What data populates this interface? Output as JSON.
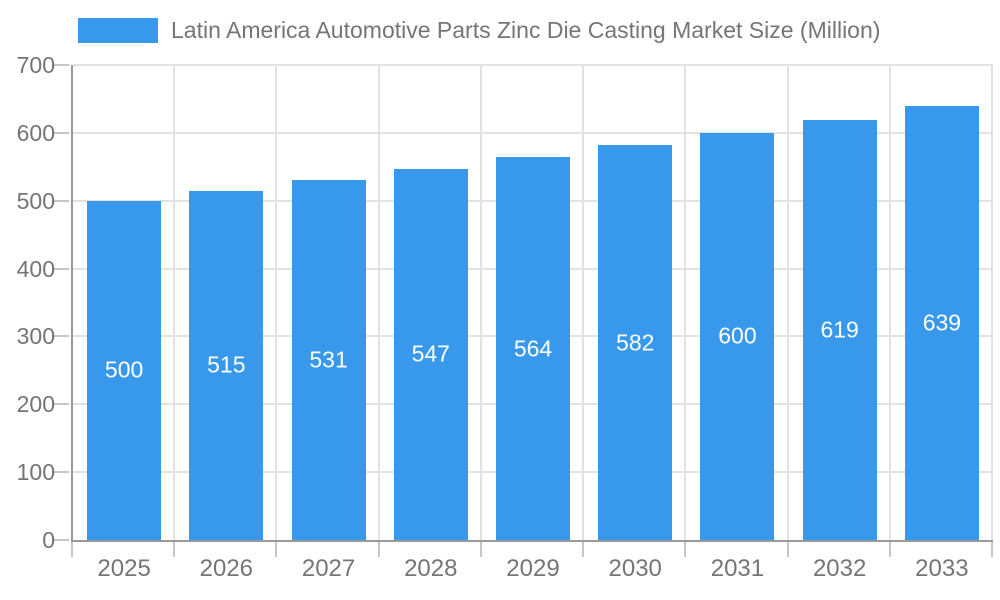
{
  "legend": {
    "label": "Latin America Automotive Parts Zinc Die Casting Market Size (Million)"
  },
  "colors": {
    "bar": "#3899EC",
    "bar_label_text": "#FFFFFF",
    "axis_line": "#999999",
    "grid_line": "#E2E2E2",
    "tick_line": "#C6C6C6",
    "label_text": "#757575"
  },
  "chart_data": {
    "type": "bar",
    "title": "Latin America Automotive Parts Zinc Die Casting Market Size (Million)",
    "categories": [
      "2025",
      "2026",
      "2027",
      "2028",
      "2029",
      "2030",
      "2031",
      "2032",
      "2033"
    ],
    "values": [
      500,
      515,
      531,
      547,
      564,
      582,
      600,
      619,
      639
    ],
    "xlabel": "",
    "ylabel": "",
    "ylim": [
      0,
      700
    ],
    "yticks": [
      0,
      100,
      200,
      300,
      400,
      500,
      600,
      700
    ],
    "grid": true,
    "legend_position": "top-left",
    "bar_value_labels": "inside-center"
  }
}
